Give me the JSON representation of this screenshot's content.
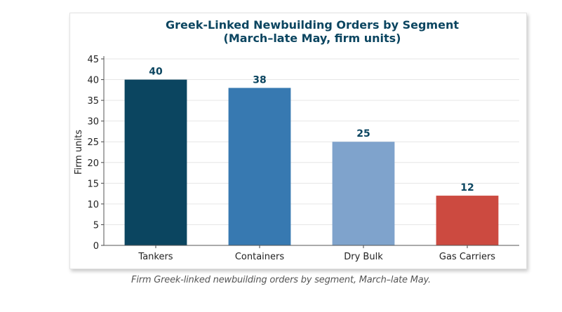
{
  "chart_data": {
    "type": "bar",
    "title_lines": [
      "Greek-Linked Newbuilding Orders by Segment",
      "(March–late May, firm units)"
    ],
    "xlabel": "",
    "ylabel": "Firm units",
    "categories": [
      "Tankers",
      "Containers",
      "Dry Bulk",
      "Gas Carriers"
    ],
    "values": [
      40,
      38,
      25,
      12
    ],
    "data_labels": [
      "40",
      "38",
      "25",
      "12"
    ],
    "colors": [
      "#0b4560",
      "#3779b1",
      "#7fa3cc",
      "#cc4a40"
    ],
    "ylim": [
      0,
      45
    ],
    "yticks": [
      0,
      5,
      10,
      15,
      20,
      25,
      30,
      35,
      40,
      45
    ],
    "grid": true,
    "title_color": "#0b4560",
    "label_color": "#0b4560"
  },
  "caption": "Firm Greek-linked newbuilding orders by segment, March–late May."
}
